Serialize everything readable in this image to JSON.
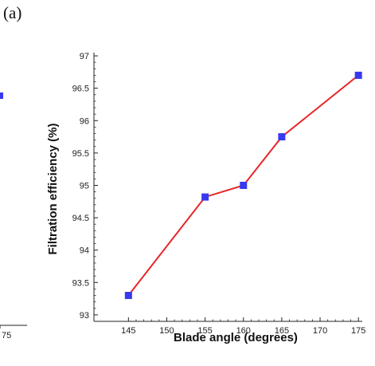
{
  "panel_label": "(a)",
  "left_fragment": {
    "tick_label": "75"
  },
  "chart_data": {
    "type": "line",
    "title": "",
    "xlabel": "Blade angle (degrees)",
    "ylabel": "Filtration efficiency (%)",
    "x": [
      145,
      155,
      160,
      165,
      175
    ],
    "series": [
      {
        "values": [
          93.3,
          94.82,
          95.0,
          95.75,
          96.7
        ]
      }
    ],
    "xlim": [
      140.5,
      175.5
    ],
    "ylim": [
      92.9,
      97.05
    ],
    "xticks": [
      145,
      150,
      155,
      160,
      165,
      170,
      175
    ],
    "yticks": [
      93,
      93.5,
      94,
      94.5,
      95,
      95.5,
      96,
      96.5,
      97
    ],
    "grid": false,
    "line_color": "#e8262a",
    "marker_color": "#3838f0",
    "marker": "square"
  }
}
